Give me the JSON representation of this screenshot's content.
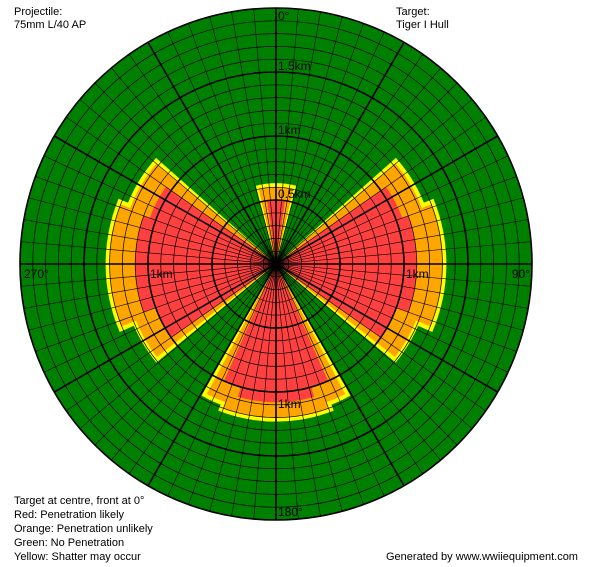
{
  "header": {
    "projectile_label": "Projectile:",
    "projectile_value": "75mm L/40 AP",
    "target_label": "Target:",
    "target_value": "Tiger I Hull"
  },
  "footer": {
    "notes": [
      "Target at centre, front at 0°",
      "Red: Penetration likely",
      "Orange: Penetration unlikely",
      "Green: No Penetration",
      "Yellow: Shatter may occur"
    ],
    "credit": "Generated by www.wwiiequipment.com"
  },
  "chart_data": {
    "type": "polar-area",
    "max_range_km": 2,
    "range_labels": [
      {
        "text": "0.5km",
        "angle": 0,
        "r": 0.5
      },
      {
        "text": "1km",
        "angle": 0,
        "r": 1
      },
      {
        "text": "1.5km",
        "angle": 0,
        "r": 1.5
      },
      {
        "text": "1km",
        "angle": 90,
        "r": 1
      },
      {
        "text": "1km",
        "angle": 180,
        "r": 1
      },
      {
        "text": "1km",
        "angle": 270,
        "r": 1
      }
    ],
    "angle_labels": [
      {
        "text": "0°",
        "angle": 0
      },
      {
        "text": "90°",
        "angle": 90
      },
      {
        "text": "180°",
        "angle": 180
      },
      {
        "text": "270°",
        "angle": 270
      }
    ],
    "colors": {
      "no_penetration": "#008000",
      "penetration_unlikely": "#FFA500",
      "shatter": "#FFFF00",
      "penetration_likely": "#FF4040"
    },
    "zones": {
      "penetration_unlikely": [
        {
          "a1": -13,
          "a2": 13,
          "r": 0.6
        },
        {
          "a1": 50,
          "a2": 69,
          "r": 1.22
        },
        {
          "a1": 69,
          "a2": 112,
          "r": 1.3
        },
        {
          "a1": 112,
          "a2": 128,
          "r": 1.18
        },
        {
          "a1": 152,
          "a2": 160,
          "r": 1.15
        },
        {
          "a1": 160,
          "a2": 200,
          "r": 1.2
        },
        {
          "a1": 200,
          "a2": 208,
          "r": 1.15
        },
        {
          "a1": 232,
          "a2": 248,
          "r": 1.18
        },
        {
          "a1": 248,
          "a2": 291,
          "r": 1.3
        },
        {
          "a1": 291,
          "a2": 310,
          "r": 1.22
        }
      ],
      "penetration_likely": [
        {
          "a1": -8,
          "a2": 8,
          "r": 0.5
        },
        {
          "a1": 55,
          "a2": 70,
          "r": 1.05
        },
        {
          "a1": 70,
          "a2": 110,
          "r": 1.1
        },
        {
          "a1": 110,
          "a2": 125,
          "r": 1.0
        },
        {
          "a1": 156,
          "a2": 164,
          "r": 1.0
        },
        {
          "a1": 164,
          "a2": 196,
          "r": 1.08
        },
        {
          "a1": 196,
          "a2": 204,
          "r": 1.0
        },
        {
          "a1": 235,
          "a2": 250,
          "r": 1.0
        },
        {
          "a1": 250,
          "a2": 290,
          "r": 1.1
        },
        {
          "a1": 290,
          "a2": 305,
          "r": 1.05
        }
      ]
    },
    "grid": {
      "ring_step_km": 0.1,
      "major_ring_step_km": 0.5,
      "spoke_step_deg": 5,
      "major_spoke_step_deg": 30
    }
  }
}
